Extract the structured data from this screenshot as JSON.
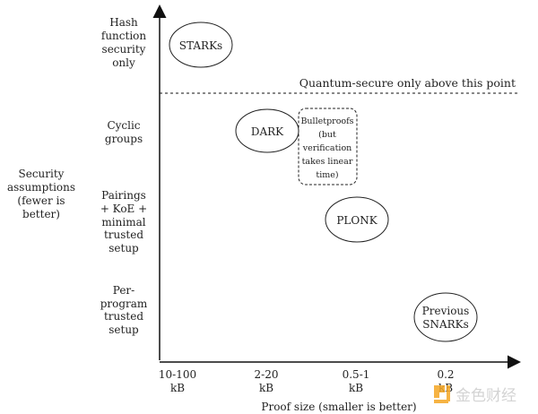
{
  "y_axis": {
    "title": [
      "Security",
      "assumptions",
      "(fewer is",
      "better)"
    ],
    "levels": [
      [
        "Hash",
        "function",
        "security",
        "only"
      ],
      [
        "Cyclic",
        "groups"
      ],
      [
        "Pairings",
        "+ KoE +",
        "minimal",
        "trusted",
        "setup"
      ],
      [
        "Per-",
        "program",
        "trusted",
        "setup"
      ]
    ]
  },
  "x_axis": {
    "title": "Proof size (smaller is better)",
    "ticks": [
      [
        "10-100",
        "kB"
      ],
      [
        "2-20",
        "kB"
      ],
      [
        "0.5-1",
        "kB"
      ],
      [
        "0.2",
        "kB"
      ]
    ]
  },
  "threshold_label": "Quantum-secure only above this point",
  "nodes": {
    "starks": "STARKs",
    "dark": "DARK",
    "plonk": "PLONK",
    "snarks": [
      "Previous",
      "SNARKs"
    ],
    "bulletproofs": [
      "Bulletproofs",
      "(but",
      "verification",
      "takes linear",
      "time)"
    ]
  },
  "watermark": {
    "text": "金色财经",
    "color": "#f5a623"
  }
}
